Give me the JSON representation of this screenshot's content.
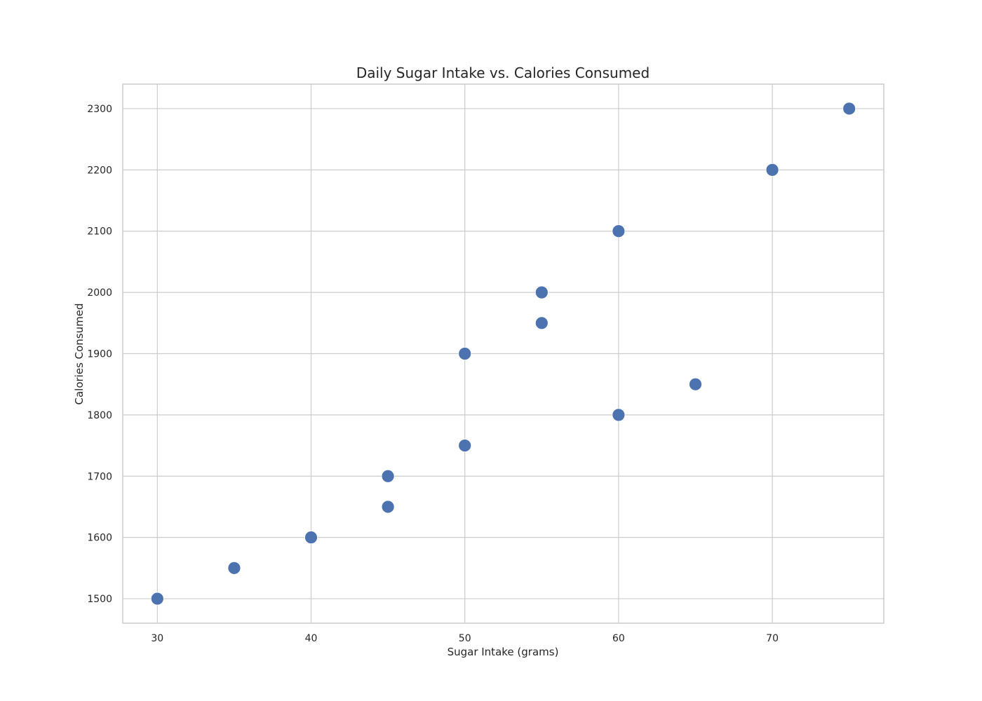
{
  "chart_data": {
    "type": "scatter",
    "title": "Daily Sugar Intake vs. Calories Consumed",
    "xlabel": "Sugar Intake (grams)",
    "ylabel": "Calories Consumed",
    "xlim": [
      27.75,
      77.25
    ],
    "ylim": [
      1460,
      2340
    ],
    "xticks": [
      30,
      40,
      50,
      60,
      70
    ],
    "yticks": [
      1500,
      1600,
      1700,
      1800,
      1900,
      2000,
      2100,
      2200,
      2300
    ],
    "grid": true,
    "legend": "none",
    "series": [
      {
        "color": "#4c72b0",
        "points": [
          {
            "x": 30,
            "y": 1500
          },
          {
            "x": 35,
            "y": 1550
          },
          {
            "x": 40,
            "y": 1600
          },
          {
            "x": 45,
            "y": 1650
          },
          {
            "x": 45,
            "y": 1700
          },
          {
            "x": 50,
            "y": 1750
          },
          {
            "x": 50,
            "y": 1900
          },
          {
            "x": 55,
            "y": 1950
          },
          {
            "x": 55,
            "y": 2000
          },
          {
            "x": 60,
            "y": 1800
          },
          {
            "x": 60,
            "y": 2100
          },
          {
            "x": 65,
            "y": 1850
          },
          {
            "x": 70,
            "y": 2200
          },
          {
            "x": 75,
            "y": 2300
          }
        ]
      }
    ]
  }
}
